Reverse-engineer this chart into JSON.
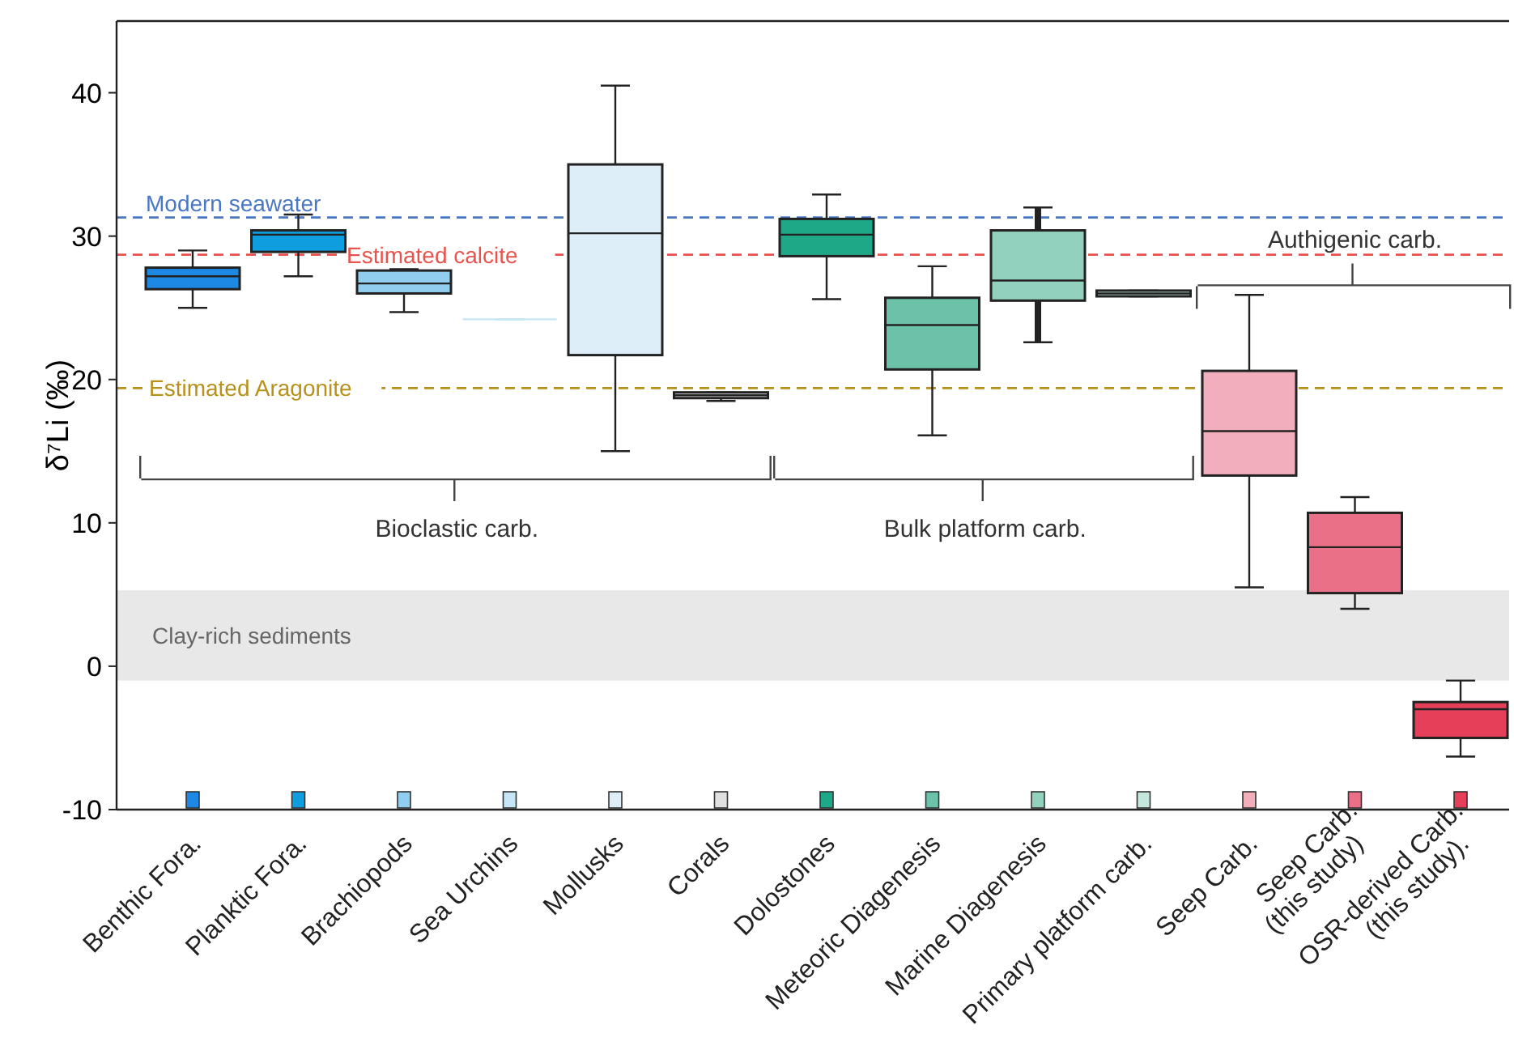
{
  "chart_data": {
    "type": "box",
    "ylabel": "δ⁷Li (‰)",
    "categories": [
      "Benthic Fora.",
      "Planktic Fora.",
      "Brachiopods",
      "Sea Urchins",
      "Mollusks",
      "Corals",
      "Dolostones",
      "Meteoric Diagenesis",
      "Marine Diagenesis",
      "Primary platform carb.",
      "Seep Carb.",
      "Seep Carb.\n(this study)",
      "OSR-derived  Carb.\n(this study)."
    ],
    "boxes": [
      {
        "low": 25.0,
        "q1": 26.3,
        "median": 27.2,
        "q3": 27.8,
        "high": 29.0
      },
      {
        "low": 27.2,
        "q1": 28.9,
        "median": 30.1,
        "q3": 30.4,
        "high": 31.5
      },
      {
        "low": 24.7,
        "q1": 26.0,
        "median": 26.7,
        "q3": 27.6,
        "high": 27.7
      },
      {
        "low": 24.2,
        "q1": 24.2,
        "median": 24.2,
        "q3": 24.2,
        "high": 24.2
      },
      {
        "low": 15.0,
        "q1": 21.7,
        "median": 30.2,
        "q3": 35.0,
        "high": 40.5
      },
      {
        "low": 18.5,
        "q1": 18.7,
        "median": 18.9,
        "q3": 19.1,
        "high": 19.1
      },
      {
        "low": 25.6,
        "q1": 28.6,
        "median": 30.1,
        "q3": 31.2,
        "high": 32.9
      },
      {
        "low": 16.1,
        "q1": 20.7,
        "median": 23.8,
        "q3": 25.7,
        "high": 27.9
      },
      {
        "low": 22.6,
        "q1": 25.5,
        "median": 26.9,
        "q3": 30.4,
        "high": 32.0
      },
      {
        "low": 25.8,
        "q1": 25.8,
        "median": 26.0,
        "q3": 26.2,
        "high": 26.2
      },
      {
        "low": 5.5,
        "q1": 13.3,
        "median": 16.4,
        "q3": 20.6,
        "high": 25.9
      },
      {
        "low": 4.0,
        "q1": 5.1,
        "median": 8.3,
        "q3": 10.7,
        "high": 11.8
      },
      {
        "low": -6.3,
        "q1": -5.0,
        "median": -3.0,
        "q3": -2.5,
        "high": -1.0
      }
    ],
    "colors": [
      "#1e88e5",
      "#0e9ee0",
      "#90cdee",
      "#c5e6f7",
      "#ddeef9",
      "#e0e0e0",
      "#1fa887",
      "#6cc2a8",
      "#92d1bd",
      "#c5e6dc",
      "#f2aebb",
      "#e97086",
      "#e53f5a"
    ],
    "ylim": [
      -10,
      45
    ],
    "yticks": [
      -10,
      0,
      10,
      20,
      30,
      40
    ],
    "ref_lines": [
      {
        "axis": "y",
        "value": 31.3,
        "label": "Modern seawater",
        "color": "#4a77c4",
        "line_style": "dashed"
      },
      {
        "axis": "y",
        "value": 28.7,
        "label": "Estimated calcite",
        "color": "#e8534d",
        "line_style": "dashed"
      },
      {
        "axis": "y",
        "value": 19.4,
        "label": "Estimated Aragonite",
        "color": "#b8901a",
        "line_style": "dashed"
      }
    ],
    "bands": [
      {
        "axis": "y",
        "from": -1.0,
        "to": 5.3,
        "label": "Clay-rich sediments",
        "color": "#e8e8e8"
      }
    ],
    "annotations": [
      "Bioclastic carb.",
      "Bulk platform carb.",
      "Authigenic carb."
    ],
    "grid": false,
    "legend": false
  }
}
